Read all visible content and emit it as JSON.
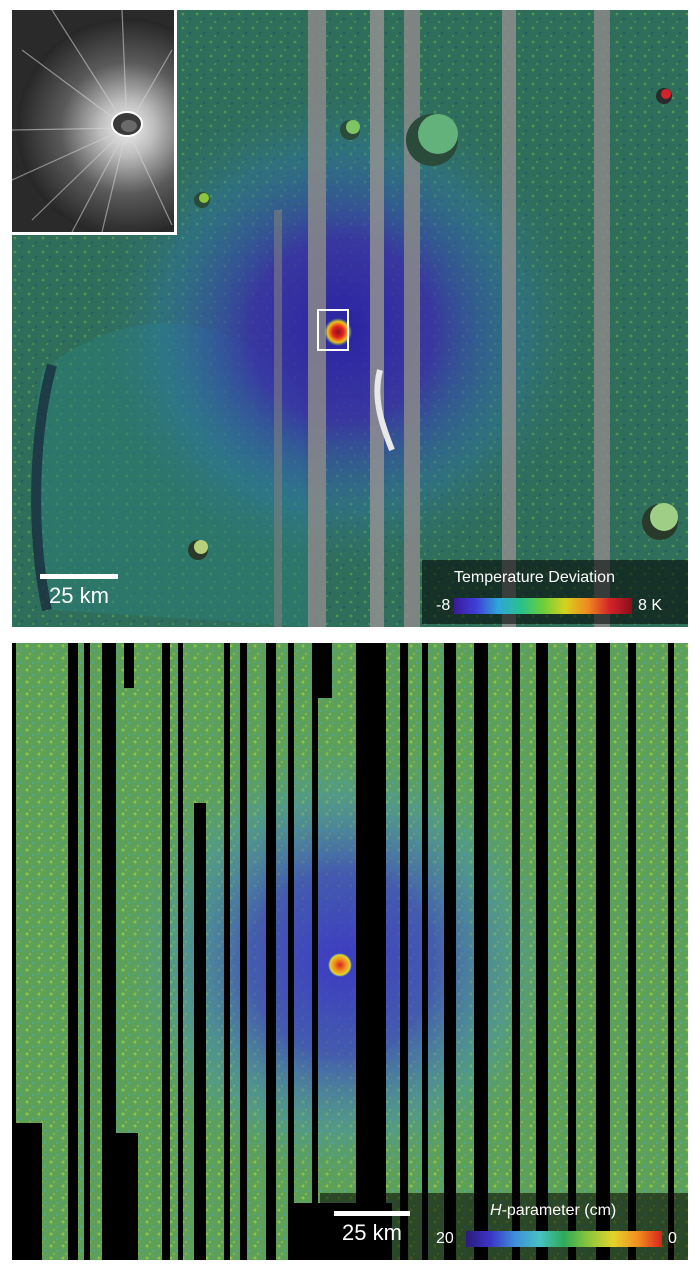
{
  "top_panel": {
    "scale_bar_label": "25 km",
    "legend": {
      "title": "Temperature Deviation",
      "min_label": "-8",
      "max_label": "8 K"
    },
    "colors": {
      "background": "#2f6e5a",
      "cold": "#3b2ab0",
      "hot": "#d3232a",
      "strips": "#8a8a8a"
    }
  },
  "bottom_panel": {
    "scale_bar_label": "25 km",
    "legend": {
      "title_italic": "H",
      "title_rest": "-parameter (cm)",
      "min_label": "20",
      "max_label": "0"
    },
    "colors": {
      "background": "#5da05a",
      "low_h": "#3b35c8",
      "high_h": "#e3d32a",
      "nodata": "#000000"
    }
  }
}
